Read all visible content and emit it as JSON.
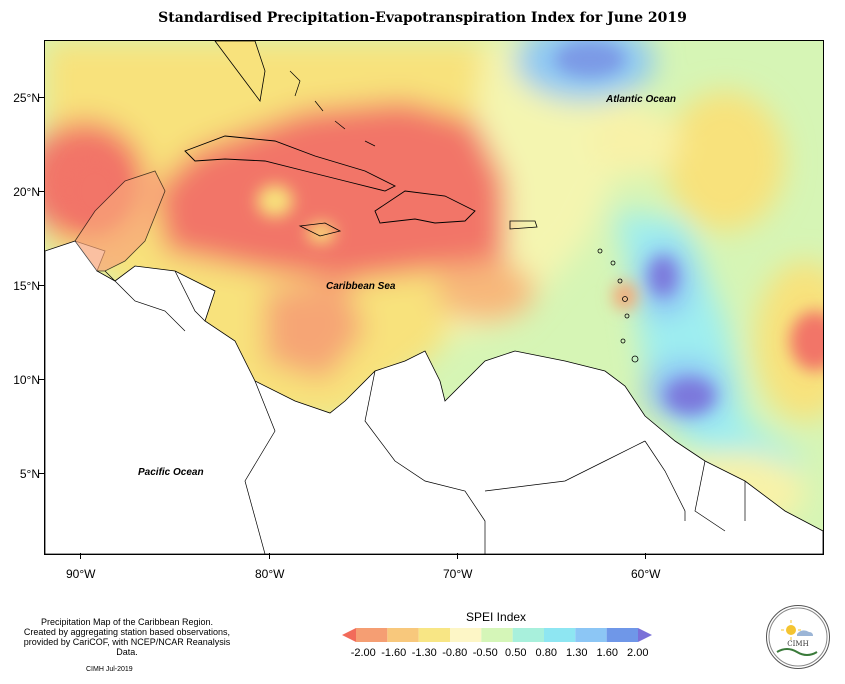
{
  "title": "Standardised Precipitation-Evapotranspiration Index for June 2019",
  "labels": {
    "atlantic": "Atlantic Ocean",
    "caribbean": "Caribbean Sea",
    "pacific": "Pacific Ocean"
  },
  "axes": {
    "lat": [
      "25°N",
      "20°N",
      "15°N",
      "10°N",
      "5°N"
    ],
    "lon": [
      "90°W",
      "80°W",
      "70°W",
      "60°W"
    ]
  },
  "legend": {
    "title": "SPEI Index",
    "ticks": [
      "-2.00",
      "-1.60",
      "-1.30",
      "-0.80",
      "-0.50",
      "0.50",
      "0.80",
      "1.30",
      "1.60",
      "2.00"
    ],
    "colors": [
      "#f26b5a",
      "#f59e73",
      "#f8c87c",
      "#f8e685",
      "#fdf6c6",
      "#d5f6b8",
      "#a8f0dc",
      "#8ee6f2",
      "#8cc6f5",
      "#6f97e8",
      "#7a70d8"
    ]
  },
  "credits": {
    "line1": "Precipitation Map of the Caribbean Region.",
    "line2": "Created by aggregating station based observations,",
    "line3": "provided by CariCOF, with NCEP/NCAR Reanalysis Data.",
    "date": "CIMH Jul-2019"
  },
  "logo": {
    "text": "CIMH"
  }
}
